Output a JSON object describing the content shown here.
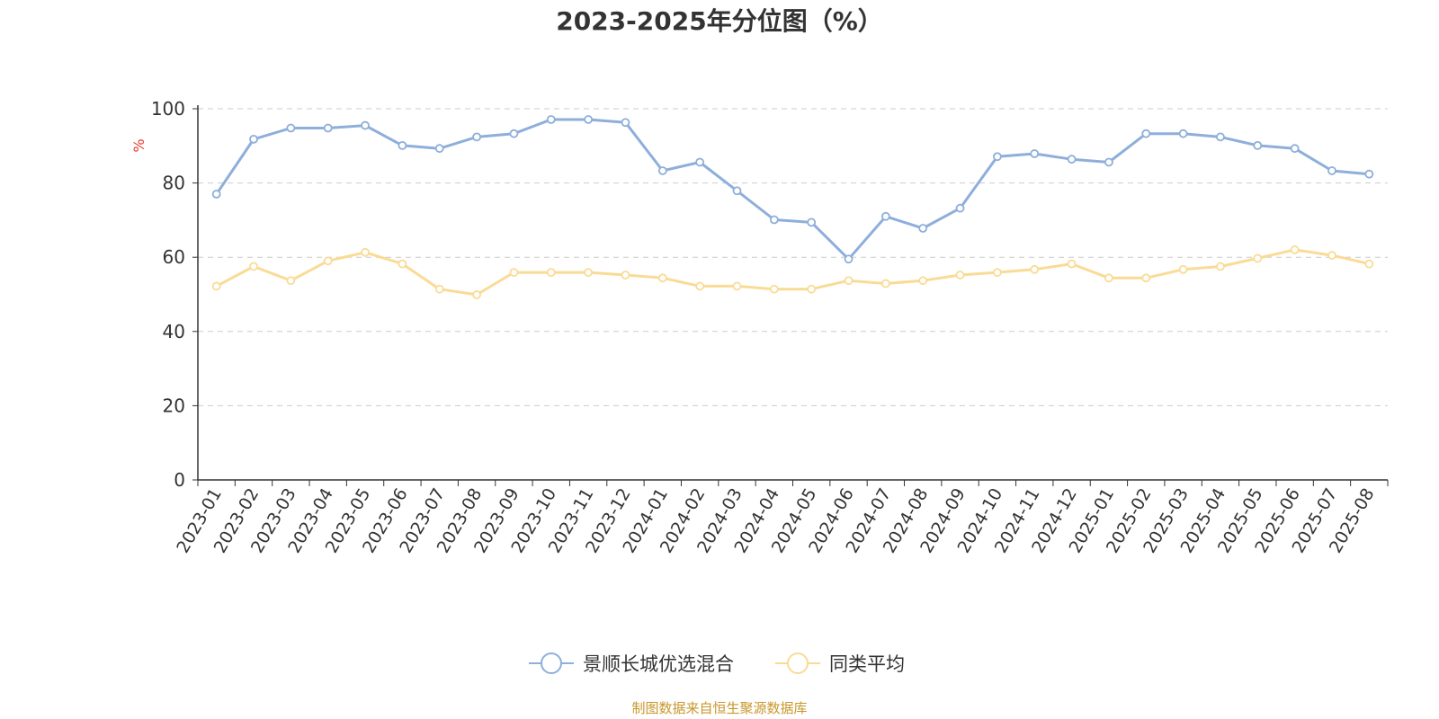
{
  "chart_data": {
    "type": "line",
    "title": "2023-2025年分位图（%）",
    "ylabel": "%",
    "ylim": [
      0,
      100
    ],
    "yticks": [
      0,
      20,
      40,
      60,
      80,
      100
    ],
    "grid": true,
    "legend_position": "bottom",
    "categories": [
      "2023-01",
      "2023-02",
      "2023-03",
      "2023-04",
      "2023-05",
      "2023-06",
      "2023-07",
      "2023-08",
      "2023-09",
      "2023-10",
      "2023-11",
      "2023-12",
      "2024-01",
      "2024-02",
      "2024-03",
      "2024-04",
      "2024-05",
      "2024-06",
      "2024-07",
      "2024-08",
      "2024-09",
      "2024-10",
      "2024-11",
      "2024-12",
      "2025-01",
      "2025-02",
      "2025-03",
      "2025-04",
      "2025-05",
      "2025-06",
      "2025-07",
      "2025-08"
    ],
    "series": [
      {
        "name": "景顺长城优选混合",
        "color": "#8eaedb",
        "values": [
          77.0,
          91.8,
          94.8,
          94.8,
          95.5,
          90.1,
          89.3,
          92.4,
          93.3,
          97.1,
          97.1,
          96.3,
          83.3,
          85.6,
          77.9,
          70.1,
          69.4,
          59.5,
          71.0,
          67.8,
          73.2,
          87.1,
          87.9,
          86.4,
          85.6,
          93.3,
          93.3,
          92.4,
          90.1,
          89.3,
          83.3,
          82.4
        ]
      },
      {
        "name": "同类平均",
        "color": "#fadb96",
        "values": [
          52.2,
          57.5,
          53.7,
          59.0,
          61.3,
          58.2,
          51.4,
          49.9,
          55.9,
          55.9,
          55.9,
          55.2,
          54.4,
          52.2,
          52.2,
          51.4,
          51.4,
          53.7,
          52.9,
          53.7,
          55.2,
          55.9,
          56.7,
          58.2,
          54.4,
          54.4,
          56.7,
          57.5,
          59.7,
          62.0,
          60.5,
          58.2
        ]
      }
    ]
  },
  "footer": {
    "source": "制图数据来自恒生聚源数据库"
  }
}
